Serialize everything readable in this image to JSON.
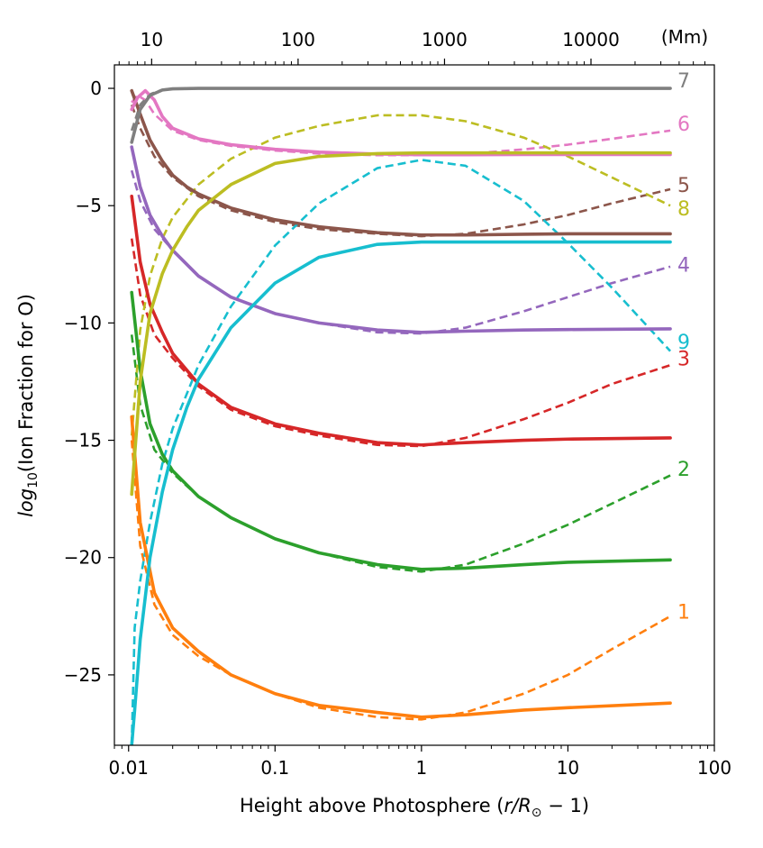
{
  "chart_data": {
    "type": "line",
    "xscale": "log",
    "xlim": [
      0.008,
      100
    ],
    "ylim": [
      -28,
      1
    ],
    "ylabel_base": "log",
    "ylabel_sub": "10",
    "ylabel_rest": "(Ion Fraction for O)",
    "xlabel_main": "Height above Photosphere (",
    "xlabel_math": "r/R",
    "xlabel_sun": "⊙",
    "xlabel_tail": " − 1)",
    "x_ticks": [
      0.01,
      0.1,
      1,
      10,
      100
    ],
    "x_tick_labels": [
      "0.01",
      "0.1",
      "1",
      "10",
      "100"
    ],
    "y_ticks": [
      0,
      -5,
      -10,
      -15,
      -20,
      -25
    ],
    "y_tick_labels": [
      "0",
      "−5",
      "−10",
      "−15",
      "−20",
      "−25"
    ],
    "top_axis": {
      "unit": "(Mm)",
      "ticks_mm": [
        10,
        100,
        1000,
        10000
      ],
      "tick_labels": [
        "10",
        "100",
        "1000",
        "10000"
      ],
      "mm_per_unit": 696
    },
    "legend_style": "end-of-line number labels",
    "series": [
      {
        "name": "1",
        "color": "#ff7f0e",
        "label_x": 60,
        "label_y": -22.3,
        "solid": {
          "x": [
            0.0105,
            0.012,
            0.015,
            0.02,
            0.03,
            0.05,
            0.1,
            0.2,
            0.5,
            1,
            2,
            5,
            10,
            50
          ],
          "y": [
            -14,
            -18.5,
            -21.5,
            -23,
            -24,
            -25,
            -25.8,
            -26.3,
            -26.6,
            -26.8,
            -26.7,
            -26.5,
            -26.4,
            -26.2
          ]
        },
        "dashed": {
          "x": [
            0.0105,
            0.012,
            0.015,
            0.02,
            0.03,
            0.05,
            0.1,
            0.2,
            0.5,
            1,
            2,
            5,
            10,
            20,
            50
          ],
          "y": [
            -15,
            -19.5,
            -22,
            -23.3,
            -24.2,
            -25,
            -25.8,
            -26.4,
            -26.8,
            -26.9,
            -26.6,
            -25.8,
            -25,
            -23.9,
            -22.5
          ]
        }
      },
      {
        "name": "2",
        "color": "#2ca02c",
        "label_x": 60,
        "label_y": -16.2,
        "solid": {
          "x": [
            0.0105,
            0.012,
            0.014,
            0.017,
            0.02,
            0.03,
            0.05,
            0.1,
            0.2,
            0.5,
            1,
            2,
            5,
            10,
            50
          ],
          "y": [
            -8.7,
            -12,
            -14.3,
            -15.6,
            -16.3,
            -17.4,
            -18.3,
            -19.2,
            -19.8,
            -20.3,
            -20.5,
            -20.45,
            -20.3,
            -20.2,
            -20.1
          ]
        },
        "dashed": {
          "x": [
            0.0105,
            0.012,
            0.015,
            0.02,
            0.03,
            0.05,
            0.1,
            0.2,
            0.5,
            1,
            2,
            5,
            10,
            20,
            50
          ],
          "y": [
            -10.5,
            -13.5,
            -15.4,
            -16.4,
            -17.4,
            -18.3,
            -19.2,
            -19.8,
            -20.4,
            -20.6,
            -20.3,
            -19.4,
            -18.6,
            -17.7,
            -16.5
          ]
        }
      },
      {
        "name": "3",
        "color": "#d62728",
        "label_x": 60,
        "label_y": -11.5,
        "solid": {
          "x": [
            0.0105,
            0.012,
            0.014,
            0.017,
            0.02,
            0.03,
            0.05,
            0.1,
            0.2,
            0.5,
            1,
            2,
            5,
            10,
            50
          ],
          "y": [
            -4.6,
            -7.4,
            -9.2,
            -10.4,
            -11.3,
            -12.6,
            -13.6,
            -14.3,
            -14.7,
            -15.1,
            -15.2,
            -15.1,
            -15,
            -14.95,
            -14.9
          ]
        },
        "dashed": {
          "x": [
            0.0105,
            0.012,
            0.015,
            0.02,
            0.03,
            0.05,
            0.1,
            0.2,
            0.5,
            1,
            2,
            5,
            10,
            20,
            50
          ],
          "y": [
            -6.4,
            -8.8,
            -10.5,
            -11.5,
            -12.7,
            -13.7,
            -14.4,
            -14.8,
            -15.2,
            -15.25,
            -14.9,
            -14.1,
            -13.4,
            -12.6,
            -11.8
          ]
        }
      },
      {
        "name": "4",
        "color": "#9467bd",
        "label_x": 60,
        "label_y": -7.5,
        "solid": {
          "x": [
            0.0105,
            0.012,
            0.014,
            0.017,
            0.02,
            0.03,
            0.05,
            0.1,
            0.2,
            0.5,
            1,
            2,
            5,
            10,
            50
          ],
          "y": [
            -2.5,
            -4.2,
            -5.4,
            -6.3,
            -6.9,
            -8,
            -8.9,
            -9.6,
            -10,
            -10.3,
            -10.4,
            -10.35,
            -10.3,
            -10.28,
            -10.25
          ]
        },
        "dashed": {
          "x": [
            0.0105,
            0.012,
            0.015,
            0.02,
            0.03,
            0.05,
            0.1,
            0.2,
            0.5,
            1,
            2,
            5,
            10,
            20,
            50
          ],
          "y": [
            -3.5,
            -4.8,
            -6,
            -6.9,
            -8,
            -8.9,
            -9.6,
            -10,
            -10.4,
            -10.45,
            -10.2,
            -9.5,
            -8.9,
            -8.3,
            -7.6
          ]
        }
      },
      {
        "name": "5",
        "color": "#8c564b",
        "label_x": 60,
        "label_y": -4.1,
        "solid": {
          "x": [
            0.0105,
            0.012,
            0.014,
            0.017,
            0.02,
            0.025,
            0.03,
            0.05,
            0.1,
            0.2,
            0.5,
            1,
            2,
            5,
            10,
            50
          ],
          "y": [
            -0.1,
            -1.1,
            -2.2,
            -3.1,
            -3.7,
            -4.2,
            -4.5,
            -5.1,
            -5.6,
            -5.9,
            -6.15,
            -6.25,
            -6.25,
            -6.22,
            -6.2,
            -6.2
          ]
        },
        "dashed": {
          "x": [
            0.0105,
            0.012,
            0.015,
            0.02,
            0.03,
            0.05,
            0.1,
            0.2,
            0.5,
            1,
            2,
            5,
            10,
            20,
            50
          ],
          "y": [
            -0.7,
            -1.7,
            -2.9,
            -3.8,
            -4.6,
            -5.2,
            -5.7,
            -6,
            -6.2,
            -6.3,
            -6.2,
            -5.8,
            -5.4,
            -4.9,
            -4.3
          ]
        }
      },
      {
        "name": "6",
        "color": "#e377c2",
        "label_x": 60,
        "label_y": -1.5,
        "solid": {
          "x": [
            0.0105,
            0.0115,
            0.013,
            0.015,
            0.017,
            0.02,
            0.03,
            0.05,
            0.1,
            0.2,
            0.5,
            1,
            2,
            5,
            10,
            50
          ],
          "y": [
            -0.9,
            -0.4,
            -0.1,
            -0.5,
            -1.2,
            -1.7,
            -2.15,
            -2.4,
            -2.6,
            -2.72,
            -2.8,
            -2.83,
            -2.83,
            -2.82,
            -2.82,
            -2.82
          ]
        },
        "dashed": {
          "x": [
            0.0105,
            0.0115,
            0.013,
            0.015,
            0.02,
            0.03,
            0.05,
            0.1,
            0.2,
            0.5,
            1,
            2,
            5,
            10,
            20,
            50
          ],
          "y": [
            -0.6,
            -0.3,
            -0.5,
            -1.1,
            -1.8,
            -2.2,
            -2.45,
            -2.65,
            -2.78,
            -2.85,
            -2.85,
            -2.8,
            -2.6,
            -2.4,
            -2.15,
            -1.8
          ]
        }
      },
      {
        "name": "7",
        "color": "#7f7f7f",
        "label_x": 60,
        "label_y": 0.35,
        "solid": {
          "x": [
            0.0105,
            0.012,
            0.014,
            0.017,
            0.02,
            0.03,
            0.1,
            1,
            10,
            50
          ],
          "y": [
            -2.3,
            -0.9,
            -0.3,
            -0.07,
            -0.02,
            0,
            0,
            0,
            0,
            0
          ]
        },
        "dashed": {
          "x": [
            0.0105,
            0.012,
            0.014,
            0.017,
            0.02,
            0.03,
            0.1,
            1,
            10,
            50
          ],
          "y": [
            -1.8,
            -0.7,
            -0.25,
            -0.06,
            -0.02,
            0,
            0,
            0,
            0,
            0
          ]
        }
      },
      {
        "name": "8",
        "color": "#bcbd22",
        "label_x": 60,
        "label_y": -5.1,
        "solid": {
          "x": [
            0.0105,
            0.012,
            0.014,
            0.017,
            0.02,
            0.025,
            0.03,
            0.05,
            0.1,
            0.2,
            0.5,
            1,
            2,
            5,
            10,
            50
          ],
          "y": [
            -17.3,
            -12.5,
            -9.6,
            -7.9,
            -6.9,
            -5.9,
            -5.2,
            -4.1,
            -3.2,
            -2.9,
            -2.78,
            -2.75,
            -2.75,
            -2.75,
            -2.75,
            -2.75
          ]
        },
        "dashed": {
          "x": [
            0.0105,
            0.012,
            0.014,
            0.017,
            0.02,
            0.03,
            0.05,
            0.1,
            0.2,
            0.5,
            1,
            2,
            5,
            10,
            20,
            50
          ],
          "y": [
            -14.8,
            -10.3,
            -8,
            -6.4,
            -5.5,
            -4.1,
            -3,
            -2.1,
            -1.6,
            -1.15,
            -1.15,
            -1.4,
            -2.1,
            -2.9,
            -3.8,
            -5
          ]
        }
      },
      {
        "name": "9",
        "color": "#17becf",
        "label_x": 60,
        "label_y": -10.8,
        "solid": {
          "x": [
            0.0105,
            0.011,
            0.012,
            0.014,
            0.017,
            0.02,
            0.025,
            0.03,
            0.05,
            0.1,
            0.2,
            0.5,
            1,
            2,
            5,
            10,
            50
          ],
          "y": [
            -28,
            -26.5,
            -23.5,
            -20,
            -17.2,
            -15.4,
            -13.6,
            -12.4,
            -10.2,
            -8.3,
            -7.2,
            -6.65,
            -6.55,
            -6.55,
            -6.55,
            -6.55,
            -6.55
          ]
        },
        "dashed": {
          "x": [
            0.0105,
            0.011,
            0.012,
            0.014,
            0.017,
            0.02,
            0.03,
            0.05,
            0.1,
            0.2,
            0.5,
            1,
            2,
            5,
            10,
            20,
            50
          ],
          "y": [
            -28,
            -23,
            -21,
            -18.5,
            -16,
            -14.5,
            -11.8,
            -9.3,
            -6.7,
            -4.9,
            -3.4,
            -3.05,
            -3.3,
            -4.8,
            -6.6,
            -8.5,
            -11.2
          ]
        }
      }
    ]
  }
}
